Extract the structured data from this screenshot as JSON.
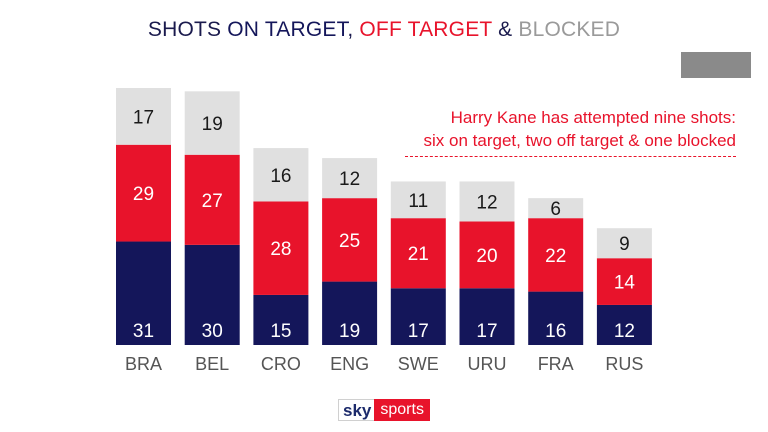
{
  "title": {
    "parts": [
      {
        "text": "SHOTS ",
        "color": "#1a1a4d"
      },
      {
        "text": "ON TARGET",
        "color": "#14165a"
      },
      {
        "text": ", ",
        "color": "#1a1a4d"
      },
      {
        "text": "OFF TARGET",
        "color": "#e8132b"
      },
      {
        "text": " & ",
        "color": "#1a1a4d"
      },
      {
        "text": "BLOCKED",
        "color": "#9a9a9a"
      }
    ]
  },
  "annotation": {
    "line1": "Harry Kane has attempted nine shots:",
    "line2": "six on target, two off target & one blocked"
  },
  "logo": {
    "brand": "sky",
    "product": "sports"
  },
  "chart_data": {
    "type": "bar",
    "stacked": true,
    "categories": [
      "BRA",
      "BEL",
      "CRO",
      "ENG",
      "SWE",
      "URU",
      "FRA",
      "RUS"
    ],
    "series": [
      {
        "key": "on_target",
        "values": [
          31,
          30,
          15,
          19,
          17,
          17,
          16,
          12
        ],
        "color": "#14165a"
      },
      {
        "key": "off_target",
        "values": [
          29,
          27,
          28,
          25,
          21,
          20,
          22,
          14
        ],
        "color": "#e8132b"
      },
      {
        "key": "blocked",
        "values": [
          17,
          19,
          16,
          12,
          11,
          12,
          6,
          9
        ],
        "color": "#e0e0e0"
      }
    ],
    "label_colors": {
      "on_target": "#ffffff",
      "off_target": "#ffffff",
      "blocked": "#1a1a1a"
    },
    "tick_color": "#555555",
    "ylim": [
      0,
      77
    ]
  }
}
